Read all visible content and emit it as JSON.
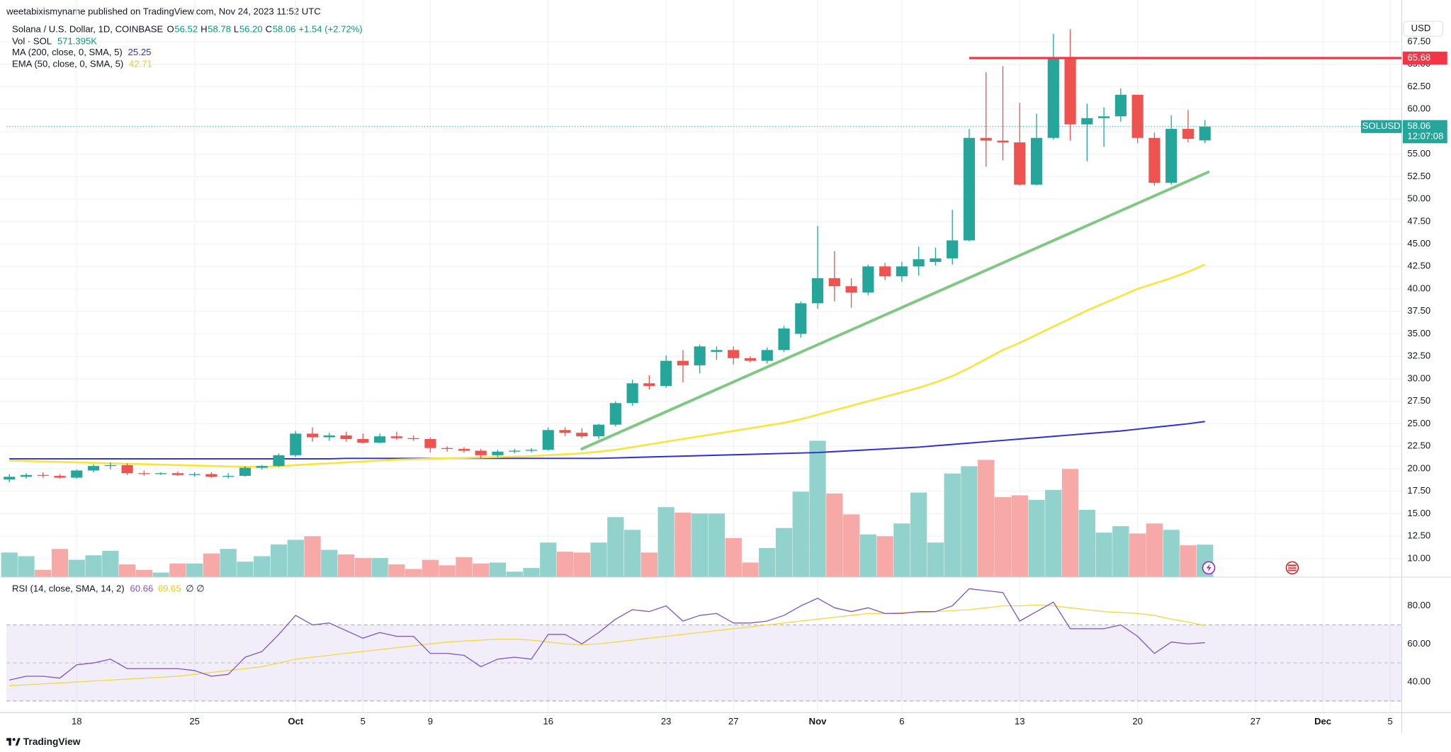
{
  "header": {
    "published": "weetabixismyname published on TradingView.com, Nov 24, 2023 11:52 UTC"
  },
  "chart_data": {
    "type": "candlestick",
    "title": "Solana / U.S. Dollar, 1D, COINBASE",
    "ohlc_legend": [
      [
        "O",
        "56.52"
      ],
      [
        "H",
        "58.78"
      ],
      [
        "L",
        "56.20"
      ],
      [
        "C",
        "58.06"
      ]
    ],
    "change": "+1.54 (+2.72%)",
    "currency": "USD",
    "up_color": "#26a69a",
    "down_color": "#ef5350",
    "candles": {
      "open": [
        18.8,
        19.1,
        19.3,
        19.2,
        19.0,
        19.8,
        20.3,
        20.4,
        19.5,
        19.4,
        19.5,
        19.3,
        19.4,
        19.1,
        19.2,
        20.1,
        20.3,
        21.5,
        23.9,
        23.5,
        23.7,
        23.3,
        22.9,
        23.6,
        23.4,
        23.3,
        22.3,
        22.2,
        22.0,
        21.5,
        21.9,
        22.0,
        22.1,
        24.3,
        24.0,
        23.6,
        24.9,
        27.3,
        29.5,
        29.2,
        32.0,
        31.5,
        33.0,
        33.2,
        32.3,
        32.0,
        33.2,
        35.0,
        38.4,
        41.2,
        40.3,
        39.6,
        42.5,
        41.4,
        42.5,
        43.0,
        43.4,
        45.4,
        56.8,
        56.5,
        56.3,
        51.6,
        56.8,
        65.7,
        58.3,
        59.0,
        59.2,
        61.6,
        56.8,
        51.8,
        57.8,
        56.52
      ],
      "high": [
        19.4,
        19.5,
        19.6,
        19.4,
        19.9,
        20.5,
        20.7,
        20.6,
        19.8,
        19.6,
        19.7,
        19.6,
        19.6,
        19.5,
        20.3,
        20.4,
        21.7,
        24.2,
        24.6,
        24.0,
        24.1,
        23.9,
        23.9,
        24.1,
        23.7,
        23.5,
        22.5,
        22.4,
        22.2,
        22.1,
        22.2,
        22.3,
        24.6,
        24.6,
        24.5,
        25.0,
        27.5,
        29.9,
        30.4,
        32.6,
        33.2,
        33.8,
        33.6,
        33.6,
        32.5,
        33.5,
        35.9,
        38.6,
        47.0,
        44.2,
        41.2,
        42.7,
        42.9,
        43.0,
        44.7,
        44.6,
        48.8,
        57.8,
        64.1,
        64.8,
        60.7,
        59.5,
        68.4,
        68.9,
        60.6,
        60.2,
        62.3,
        61.6,
        57.4,
        59.3,
        59.9,
        58.78
      ],
      "low": [
        18.5,
        18.9,
        19.0,
        18.9,
        18.9,
        19.6,
        19.9,
        19.3,
        19.2,
        19.3,
        19.2,
        19.1,
        19.0,
        18.9,
        19.1,
        19.9,
        20.2,
        21.3,
        23.0,
        23.1,
        23.0,
        22.8,
        22.8,
        23.2,
        23.1,
        21.8,
        21.9,
        21.8,
        21.1,
        21.3,
        21.7,
        21.8,
        22.0,
        23.6,
        23.4,
        23.3,
        24.7,
        27.0,
        28.8,
        29.0,
        29.6,
        30.6,
        32.1,
        31.6,
        31.8,
        31.7,
        33.0,
        34.6,
        37.8,
        38.6,
        37.9,
        39.3,
        41.0,
        40.8,
        41.5,
        42.6,
        42.7,
        45.3,
        53.6,
        54.3,
        51.5,
        51.5,
        56.6,
        56.5,
        54.2,
        55.8,
        58.6,
        56.2,
        51.5,
        51.6,
        56.3,
        56.2
      ],
      "close": [
        19.1,
        19.3,
        19.2,
        19.0,
        19.8,
        20.3,
        20.4,
        19.5,
        19.4,
        19.5,
        19.3,
        19.4,
        19.1,
        19.2,
        20.1,
        20.3,
        21.5,
        23.9,
        23.5,
        23.7,
        23.3,
        22.9,
        23.6,
        23.4,
        23.3,
        22.3,
        22.2,
        22.0,
        21.5,
        21.9,
        22.0,
        22.1,
        24.3,
        24.0,
        23.6,
        24.9,
        27.3,
        29.5,
        29.2,
        32.0,
        31.5,
        33.6,
        33.2,
        32.3,
        32.0,
        33.2,
        35.6,
        38.4,
        41.2,
        40.3,
        39.6,
        42.5,
        41.4,
        42.5,
        43.3,
        43.4,
        45.4,
        56.8,
        56.5,
        56.3,
        51.6,
        56.8,
        65.7,
        58.3,
        59.0,
        59.2,
        61.6,
        56.8,
        51.8,
        57.8,
        56.7,
        58.06
      ]
    },
    "ylim": [
      7.94,
      69.87
    ],
    "yticks": [
      {
        "value": 10,
        "label": "10.00"
      },
      {
        "value": 12.5,
        "label": "12.50"
      },
      {
        "value": 15,
        "label": "15.00"
      },
      {
        "value": 17.5,
        "label": "17.50"
      },
      {
        "value": 20,
        "label": "20.00"
      },
      {
        "value": 22.5,
        "label": "22.50"
      },
      {
        "value": 25,
        "label": "25.00"
      },
      {
        "value": 27.5,
        "label": "27.50"
      },
      {
        "value": 30,
        "label": "30.00"
      },
      {
        "value": 32.5,
        "label": "32.50"
      },
      {
        "value": 35,
        "label": "35.00"
      },
      {
        "value": 37.5,
        "label": "37.50"
      },
      {
        "value": 40,
        "label": "40.00"
      },
      {
        "value": 42.5,
        "label": "42.50"
      },
      {
        "value": 45,
        "label": "45.00"
      },
      {
        "value": 47.5,
        "label": "47.50"
      },
      {
        "value": 50,
        "label": "50.00"
      },
      {
        "value": 52.5,
        "label": "52.50"
      },
      {
        "value": 55,
        "label": "55.00"
      },
      {
        "value": 57.5,
        "label": "57.50"
      },
      {
        "value": 60,
        "label": "60.00"
      },
      {
        "value": 62.5,
        "label": "62.50"
      },
      {
        "value": 65,
        "label": "65.00"
      },
      {
        "value": 67.5,
        "label": "67.50"
      }
    ],
    "xlim": [
      -0.17,
      82.69
    ],
    "xticks": [
      {
        "value": 4,
        "label": "18"
      },
      {
        "value": 11,
        "label": "25"
      },
      {
        "value": 17,
        "label": "Oct"
      },
      {
        "value": 21,
        "label": "5"
      },
      {
        "value": 25,
        "label": "9"
      },
      {
        "value": 32,
        "label": "16"
      },
      {
        "value": 39,
        "label": "23"
      },
      {
        "value": 43,
        "label": "27"
      },
      {
        "value": 48,
        "label": "Nov"
      },
      {
        "value": 53,
        "label": "6"
      },
      {
        "value": 60,
        "label": "13"
      },
      {
        "value": 67,
        "label": "20"
      },
      {
        "value": 74,
        "label": "27"
      },
      {
        "value": 78,
        "label": "Dec"
      },
      {
        "value": 82,
        "label": "5"
      }
    ],
    "grid": true,
    "volume": {
      "name": "Vol · SOL",
      "value_label": "571.395K",
      "vlim": [
        0,
        9800
      ],
      "up_color": "#92d2cc",
      "down_color": "#f7a9a7",
      "values": [
        432,
        368,
        128,
        496,
        304,
        384,
        464,
        224,
        128,
        80,
        240,
        240,
        416,
        496,
        272,
        368,
        576,
        656,
        720,
        480,
        400,
        336,
        336,
        224,
        144,
        304,
        208,
        352,
        240,
        256,
        96,
        160,
        608,
        448,
        432,
        608,
        1056,
        832,
        432,
        1232,
        1136,
        1120,
        1120,
        688,
        256,
        512,
        864,
        1504,
        2400,
        1472,
        1104,
        752,
        720,
        944,
        1488,
        608,
        1824,
        1952,
        2064,
        1408,
        1440,
        1360,
        1536,
        1904,
        1184,
        784,
        896,
        768,
        944,
        832,
        560,
        571.395
      ]
    },
    "indicators": [
      {
        "name": "MA (200, close, 0, SMA, 5)",
        "value_label": "25.25",
        "color": "#2e2ed6",
        "values": [
          21.1,
          21.1,
          21.1,
          21.1,
          21.1,
          21.1,
          21.1,
          21.1,
          21.1,
          21.1,
          21.1,
          21.1,
          21.1,
          21.1,
          21.1,
          21.1,
          21.1,
          21.1,
          21.1,
          21.1,
          21.15,
          21.15,
          21.15,
          21.15,
          21.15,
          21.15,
          21.15,
          21.15,
          21.15,
          21.15,
          21.15,
          21.15,
          21.15,
          21.15,
          21.15,
          21.15,
          21.2,
          21.25,
          21.3,
          21.35,
          21.4,
          21.45,
          21.5,
          21.55,
          21.6,
          21.65,
          21.7,
          21.75,
          21.8,
          21.9,
          22.0,
          22.1,
          22.2,
          22.3,
          22.4,
          22.55,
          22.7,
          22.85,
          23.0,
          23.15,
          23.3,
          23.45,
          23.6,
          23.75,
          23.9,
          24.05,
          24.2,
          24.4,
          24.6,
          24.8,
          25.0,
          25.25
        ]
      },
      {
        "name": "EMA (50, close, 0, SMA, 5)",
        "value_label": "42.71",
        "color": "#f7e53b",
        "values": [
          20.9,
          20.85,
          20.8,
          20.75,
          20.7,
          20.65,
          20.6,
          20.55,
          20.5,
          20.45,
          20.4,
          20.35,
          20.3,
          20.25,
          20.2,
          20.2,
          20.25,
          20.4,
          20.5,
          20.6,
          20.7,
          20.8,
          20.9,
          21.0,
          21.05,
          21.1,
          21.15,
          21.2,
          21.25,
          21.3,
          21.35,
          21.4,
          21.5,
          21.6,
          21.7,
          21.9,
          22.1,
          22.4,
          22.7,
          23.0,
          23.3,
          23.6,
          23.9,
          24.2,
          24.5,
          24.8,
          25.1,
          25.5,
          26.0,
          26.5,
          27.0,
          27.5,
          28.0,
          28.5,
          29.0,
          29.6,
          30.3,
          31.2,
          32.2,
          33.2,
          34.0,
          34.9,
          35.8,
          36.7,
          37.6,
          38.4,
          39.2,
          40.0,
          40.6,
          41.2,
          41.9,
          42.71
        ]
      }
    ],
    "lines": [
      {
        "kind": "horizontal",
        "value": 65.68,
        "label": "65.68",
        "color": "#f23645"
      },
      {
        "kind": "trend",
        "values": [
          22.2,
          53.0
        ],
        "color": "#81c784"
      }
    ],
    "last_price": {
      "symbol": "SOLUSD",
      "label": "58.06",
      "countdown": "12:07:08"
    },
    "rsi": {
      "name": "RSI (14, close, SMA, 14, 2)",
      "value_label": "60.66",
      "sma_label": "69.65",
      "extra": "∅ ∅",
      "color": "#7e57c2",
      "sma_color": "#f5d742",
      "ylim": [
        23.9,
        94.15
      ],
      "yticks": [
        {
          "value": 80,
          "label": "80.00"
        },
        {
          "value": 60,
          "label": "60.00"
        },
        {
          "value": 40,
          "label": "40.00"
        }
      ],
      "bands": [
        70,
        50,
        30
      ],
      "values": [
        41,
        43,
        43,
        42,
        49,
        50,
        52,
        47,
        47,
        47,
        47,
        46,
        43,
        44,
        53,
        56,
        65,
        75,
        70,
        71,
        67,
        63,
        66,
        64,
        64,
        55,
        55,
        54,
        48,
        52,
        53,
        52,
        65,
        65,
        60,
        66,
        73,
        78,
        77,
        80,
        72,
        75,
        76,
        71,
        71,
        72,
        75,
        80,
        84,
        79,
        77,
        79,
        76,
        76,
        77,
        77,
        80,
        89,
        88,
        87,
        72,
        77,
        82,
        68,
        68,
        68,
        70,
        64,
        55,
        61,
        60,
        60.66
      ],
      "sma_values": [
        38,
        38.5,
        39,
        39.5,
        40,
        40.5,
        41,
        41.5,
        42,
        42.5,
        43,
        44,
        45,
        46,
        47,
        48,
        50,
        52,
        53,
        54,
        55,
        56,
        57,
        58,
        59,
        60,
        61,
        61.5,
        62,
        62.5,
        62.5,
        62,
        61,
        60,
        59.5,
        60,
        61,
        62,
        63,
        64,
        65,
        66,
        67,
        68,
        69,
        70,
        71,
        72,
        73,
        74,
        75,
        76,
        76,
        76.5,
        76.5,
        77,
        77.5,
        78,
        79,
        80,
        80,
        80.5,
        80,
        79,
        78,
        77,
        76.5,
        76,
        75,
        73,
        71.5,
        69.65
      ]
    }
  },
  "footer": {
    "brand": "TradingView"
  }
}
